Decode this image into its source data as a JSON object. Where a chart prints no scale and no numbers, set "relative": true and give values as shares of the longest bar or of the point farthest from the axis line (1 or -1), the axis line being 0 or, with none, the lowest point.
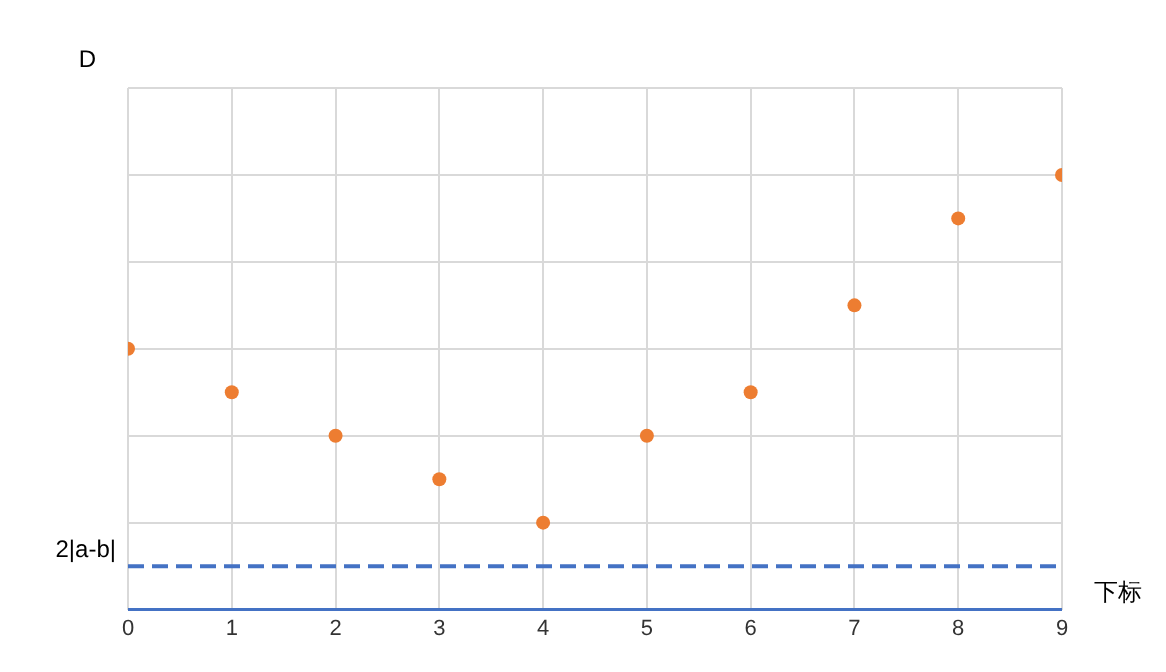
{
  "chart_data": {
    "type": "scatter",
    "relative": true,
    "xlabel": "下标",
    "ylabel": "D",
    "x": [
      0,
      1,
      2,
      3,
      4,
      5,
      6,
      7,
      8,
      9
    ],
    "xlim": [
      0,
      9
    ],
    "xticks": [
      0,
      1,
      2,
      3,
      4,
      5,
      6,
      7,
      8,
      9
    ],
    "series": [
      {
        "color": "#ed7d31",
        "values": [
          0.6,
          0.5,
          0.4,
          0.3,
          0.2,
          0.4,
          0.5,
          0.7,
          0.9,
          1
        ]
      }
    ],
    "ref_lines": [
      {
        "axis": "y",
        "value": 0.1,
        "label": "2|a-b|",
        "color": "#4472c4",
        "line_style": "dashed"
      }
    ],
    "grid": true,
    "marker": "circle",
    "legend": false
  }
}
